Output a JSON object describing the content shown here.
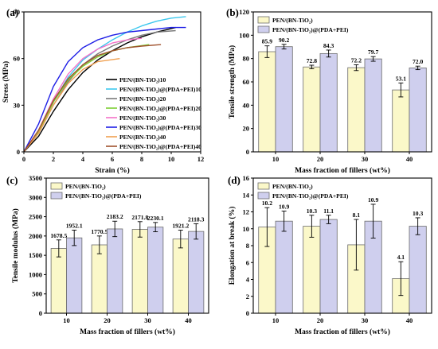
{
  "chart_data": [
    {
      "panel": "(a)",
      "type": "line",
      "xlabel": "Strain (%)",
      "ylabel": "Stress (MPa)",
      "xlim": [
        0,
        12
      ],
      "ylim": [
        0,
        90
      ],
      "xticks": [
        "0",
        "2",
        "4",
        "6",
        "8",
        "10",
        "12"
      ],
      "yticks": [
        "0",
        "30",
        "60",
        "90"
      ],
      "legend_position": "right",
      "series": [
        {
          "name": "PEN/(BN-TiO₂)10",
          "color": "#000000",
          "x": [
            0,
            1,
            2,
            3,
            4,
            5,
            6,
            7,
            8,
            9,
            10.3
          ],
          "y": [
            0,
            10,
            26,
            40,
            51,
            59,
            65,
            70,
            74,
            77,
            80
          ]
        },
        {
          "name": "PEN/(BN-TiO₂)@(PDA+PEI)10",
          "color": "#3cc8ee",
          "x": [
            0,
            1,
            2,
            3,
            4,
            5,
            6,
            7,
            8,
            9,
            10,
            11
          ],
          "y": [
            0,
            13,
            32,
            48,
            59,
            66,
            72,
            77,
            81,
            84,
            86,
            87
          ]
        },
        {
          "name": "PEN/(BN-TiO₂)20",
          "color": "#7a7a7a",
          "x": [
            0,
            1,
            2,
            3,
            4,
            5,
            6,
            7,
            8,
            9,
            10.3
          ],
          "y": [
            0,
            12,
            30,
            45,
            56,
            63,
            68,
            72,
            75,
            77,
            78
          ]
        },
        {
          "name": "PEN/(BN-TiO₂)@(PDA+PEI)20",
          "color": "#7ccf33",
          "x": [
            0,
            1,
            2,
            3,
            4,
            5,
            6,
            7,
            8.5
          ],
          "y": [
            0,
            13,
            32,
            46,
            55,
            61,
            65,
            67,
            69
          ]
        },
        {
          "name": "PEN/(BN-TiO₂)30",
          "color": "#f472c8",
          "x": [
            0,
            1,
            2,
            3,
            4,
            5,
            6,
            7,
            8
          ],
          "y": [
            0,
            14,
            34,
            50,
            60,
            66,
            70,
            72,
            73
          ]
        },
        {
          "name": "PEN/(BN-TiO₂)@(PDA+PEI)30",
          "color": "#1f1fe6",
          "x": [
            0,
            1,
            2,
            3,
            4,
            5,
            6,
            7,
            8,
            9,
            10,
            11
          ],
          "y": [
            0,
            18,
            42,
            58,
            67,
            72,
            75,
            77,
            78,
            79,
            80,
            80
          ]
        },
        {
          "name": "PEN/(BN-TiO₂)40",
          "color": "#f0a050",
          "x": [
            0,
            1,
            2,
            3,
            4,
            5,
            6.5
          ],
          "y": [
            0,
            12,
            30,
            44,
            53,
            58,
            60
          ]
        },
        {
          "name": "PEN/(BN-TiO₂)@(PDA+PEI)40",
          "color": "#a0522d",
          "x": [
            0,
            1,
            2,
            3,
            4,
            5,
            6,
            7,
            8,
            9.3
          ],
          "y": [
            0,
            14,
            33,
            47,
            56,
            62,
            65,
            67,
            68,
            69
          ]
        }
      ]
    },
    {
      "panel": "(b)",
      "type": "bar",
      "xlabel": "Mass fraction of  fillers (wt%)",
      "ylabel": "Tensile strength (MPa)",
      "categories": [
        "10",
        "20",
        "30",
        "40"
      ],
      "ylim": [
        0,
        120
      ],
      "yticks": [
        "0",
        "20",
        "40",
        "60",
        "80",
        "100",
        "120"
      ],
      "legend_position": "top-left",
      "series": [
        {
          "name": "PEN/(BN-TiO₂)",
          "color": "#fbf8c9",
          "values": [
            85.9,
            72.8,
            72.2,
            53.1
          ],
          "errors": [
            5,
            1.5,
            2.5,
            6
          ],
          "labels": [
            "85.9",
            "72.8",
            "72.2",
            "53.1"
          ]
        },
        {
          "name": "PEN/(BN-TiO₂)@(PDA+PEI)",
          "color": "#cfcfee",
          "values": [
            90.2,
            84.3,
            79.7,
            72.0
          ],
          "errors": [
            2,
            3,
            2,
            1.5
          ],
          "labels": [
            "90.2",
            "84.3",
            "79.7",
            "72.0"
          ]
        }
      ]
    },
    {
      "panel": "(c)",
      "type": "bar",
      "xlabel": "Mass fraction of  fillers (wt%)",
      "ylabel": "Tensile modulus (MPa)",
      "categories": [
        "10",
        "20",
        "30",
        "40"
      ],
      "ylim": [
        0,
        3500
      ],
      "yticks": [
        "0",
        "500",
        "1000",
        "1500",
        "2000",
        "2500",
        "3000",
        "3500"
      ],
      "legend_position": "top-left",
      "series": [
        {
          "name": "PEN/(BN-TiO₂)",
          "color": "#fbf8c9",
          "values": [
            1678.5,
            1770.5,
            2171.8,
            1921.2
          ],
          "errors": [
            220,
            230,
            200,
            230
          ],
          "labels": [
            "1678.5",
            "1770.5",
            "2171.8",
            "1921.2"
          ]
        },
        {
          "name": "PEN/(BN-TiO₂)@(PDA+PEI)",
          "color": "#cfcfee",
          "values": [
            1952.1,
            2183.2,
            2230.1,
            2118.3
          ],
          "errors": [
            200,
            200,
            120,
            200
          ],
          "labels": [
            "1952.1",
            "2183.2",
            "2230.1",
            "2118.3"
          ]
        }
      ]
    },
    {
      "panel": "(d)",
      "type": "bar",
      "xlabel": "Mass fraction of  fillers (wt%)",
      "ylabel": "Elongation at break (%)",
      "categories": [
        "10",
        "20",
        "30",
        "40"
      ],
      "ylim": [
        0,
        16
      ],
      "yticks": [
        "0",
        "2",
        "4",
        "6",
        "8",
        "10",
        "12",
        "14",
        "16"
      ],
      "legend_position": "top-left",
      "series": [
        {
          "name": "PEN/(BN-TiO₂)",
          "color": "#fbf8c9",
          "values": [
            10.2,
            10.3,
            8.1,
            4.1
          ],
          "errors": [
            2.3,
            1.3,
            3.0,
            2.0
          ],
          "labels": [
            "10.2",
            "10.3",
            "8.1",
            "4.1"
          ]
        },
        {
          "name": "PEN/(BN-TiO₂)@(PDA+PEI)",
          "color": "#cfcfee",
          "values": [
            10.9,
            11.1,
            10.9,
            10.3
          ],
          "errors": [
            1.2,
            0.5,
            2.0,
            1.0
          ],
          "labels": [
            "10.9",
            "11.1",
            "10.9",
            "10.3"
          ]
        }
      ]
    }
  ]
}
